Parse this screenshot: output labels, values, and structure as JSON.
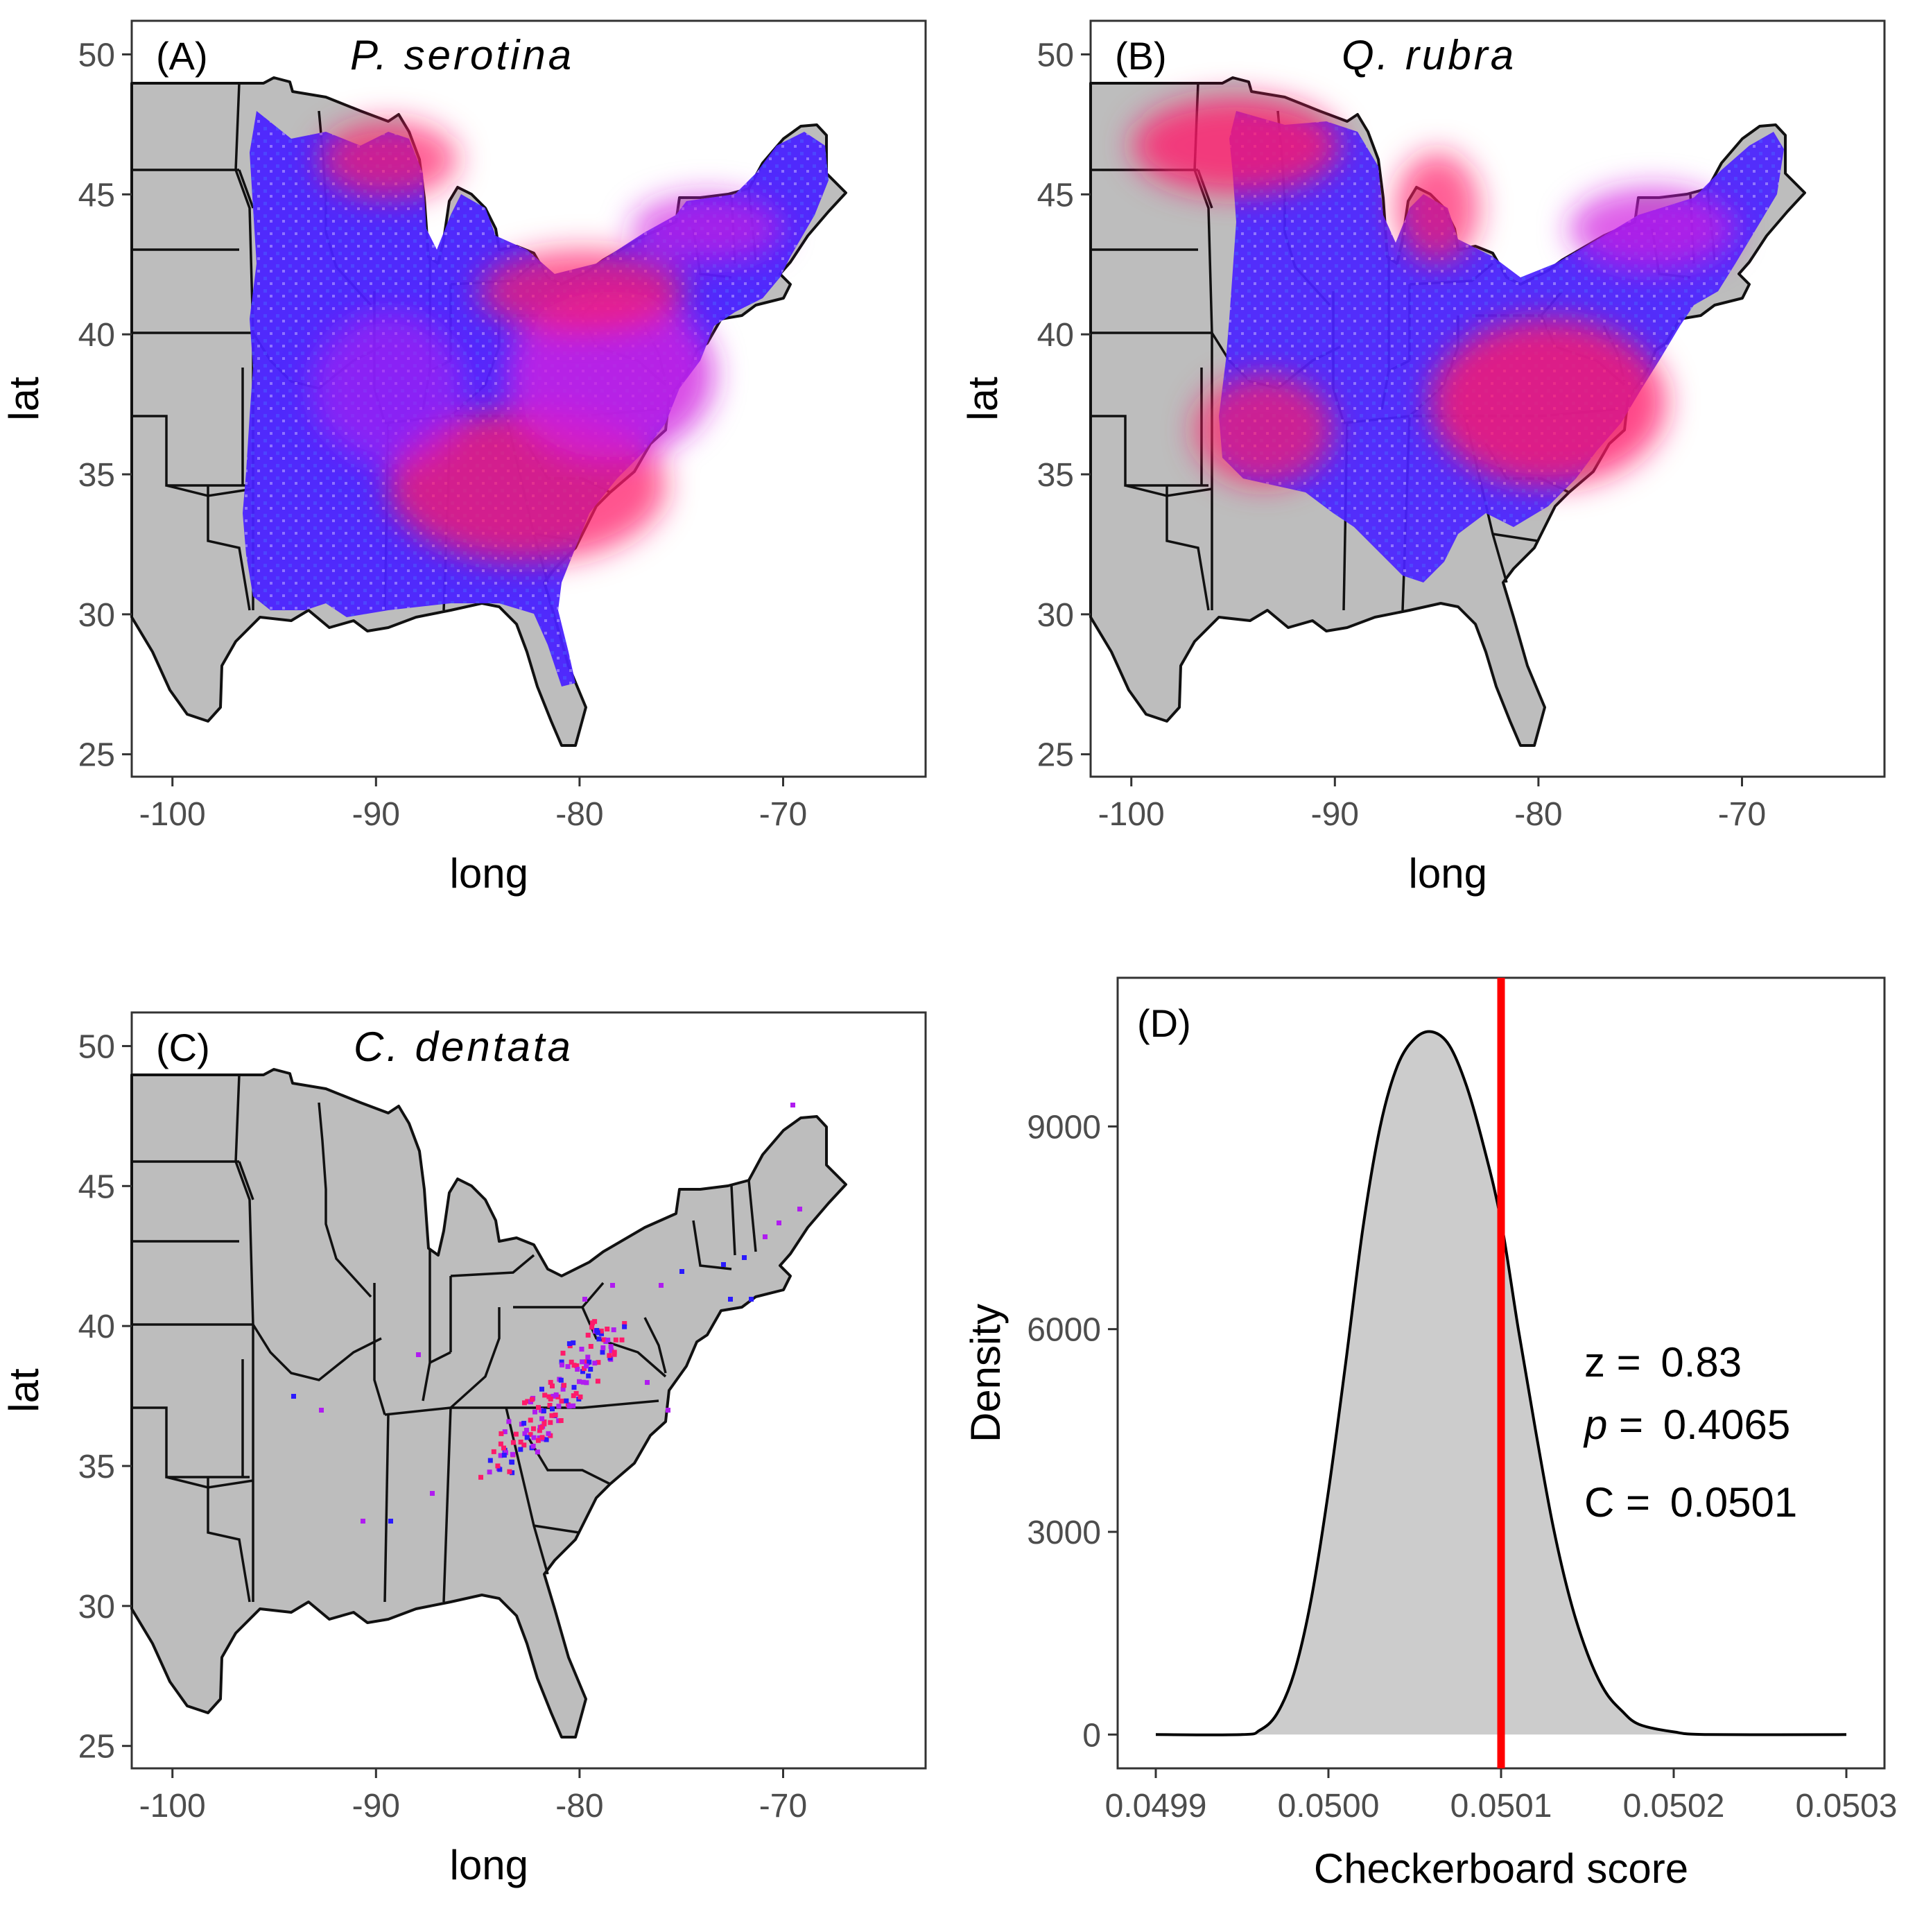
{
  "colors": {
    "background": "#ffffff",
    "land": "#bdbdbd",
    "border": "#111111",
    "low_density": "#2a1aff",
    "mid_density": "#b01cf0",
    "high_density": "#ff1a55",
    "observed_line": "#ff0000",
    "density_fill": "#cccccc"
  },
  "maps": [
    {
      "id": "A",
      "panel_label": "(A)",
      "species": "P. serotina",
      "xlabel": "long",
      "ylabel": "lat",
      "xlim": [
        -102,
        -63
      ],
      "ylim": [
        24.2,
        51.2
      ],
      "x_ticks": [
        -100,
        -90,
        -80,
        -70
      ],
      "x_tick_labels": [
        "-100",
        "-90",
        "-80",
        "-70"
      ],
      "y_ticks": [
        25,
        30,
        35,
        40,
        45,
        50
      ],
      "y_tick_labels": [
        "25",
        "30",
        "35",
        "40",
        "45",
        "50"
      ]
    },
    {
      "id": "B",
      "panel_label": "(B)",
      "species": "Q. rubra",
      "xlabel": "long",
      "ylabel": "lat",
      "xlim": [
        -102,
        -63
      ],
      "ylim": [
        24.2,
        51.2
      ],
      "x_ticks": [
        -100,
        -90,
        -80,
        -70
      ],
      "x_tick_labels": [
        "-100",
        "-90",
        "-80",
        "-70"
      ],
      "y_ticks": [
        25,
        30,
        35,
        40,
        45,
        50
      ],
      "y_tick_labels": [
        "25",
        "30",
        "35",
        "40",
        "45",
        "50"
      ]
    },
    {
      "id": "C",
      "panel_label": "(C)",
      "species": "C. dentata",
      "xlabel": "long",
      "ylabel": "lat",
      "xlim": [
        -102,
        -63
      ],
      "ylim": [
        24.2,
        51.2
      ],
      "x_ticks": [
        -100,
        -90,
        -80,
        -70
      ],
      "x_tick_labels": [
        "-100",
        "-90",
        "-80",
        "-70"
      ],
      "y_ticks": [
        25,
        30,
        35,
        40,
        45,
        50
      ],
      "y_tick_labels": [
        "25",
        "30",
        "35",
        "40",
        "45",
        "50"
      ]
    }
  ],
  "chart_data": {
    "type": "area",
    "panel_label": "(D)",
    "xlabel": "Checkerboard score",
    "ylabel": "Density",
    "xlim": [
      0.04988,
      0.05032
    ],
    "ylim": [
      -500,
      11200
    ],
    "x_ticks": [
      0.0499,
      0.05,
      0.0501,
      0.0502,
      0.0503
    ],
    "x_tick_labels": [
      "0.0499",
      "0.0500",
      "0.0501",
      "0.0502",
      "0.0503"
    ],
    "y_ticks": [
      0,
      3000,
      6000,
      9000
    ],
    "y_tick_labels": [
      "0",
      "3000",
      "6000",
      "9000"
    ],
    "x": [
      0.0499,
      0.04995,
      0.04996,
      0.04997,
      0.04998,
      0.04999,
      0.05,
      0.05001,
      0.05002,
      0.05003,
      0.05004,
      0.05005,
      0.05006,
      0.05007,
      0.05008,
      0.05009,
      0.0501,
      0.05011,
      0.05012,
      0.05013,
      0.05014,
      0.05015,
      0.05016,
      0.05017,
      0.05018,
      0.0502,
      0.05022,
      0.0503
    ],
    "y": [
      0,
      0,
      60,
      300,
      900,
      2000,
      3600,
      5500,
      7500,
      9000,
      9900,
      10300,
      10400,
      10200,
      9600,
      8700,
      7600,
      6000,
      4500,
      3100,
      2000,
      1200,
      650,
      350,
      150,
      40,
      0,
      0
    ],
    "observed_score": 0.0501,
    "annotations": {
      "z_label": "z = ",
      "z_value": "0.83",
      "p_label": "p",
      "p_eq": " = ",
      "p_value": "0.4065",
      "c_label": "C = ",
      "c_value": "0.0501"
    }
  }
}
